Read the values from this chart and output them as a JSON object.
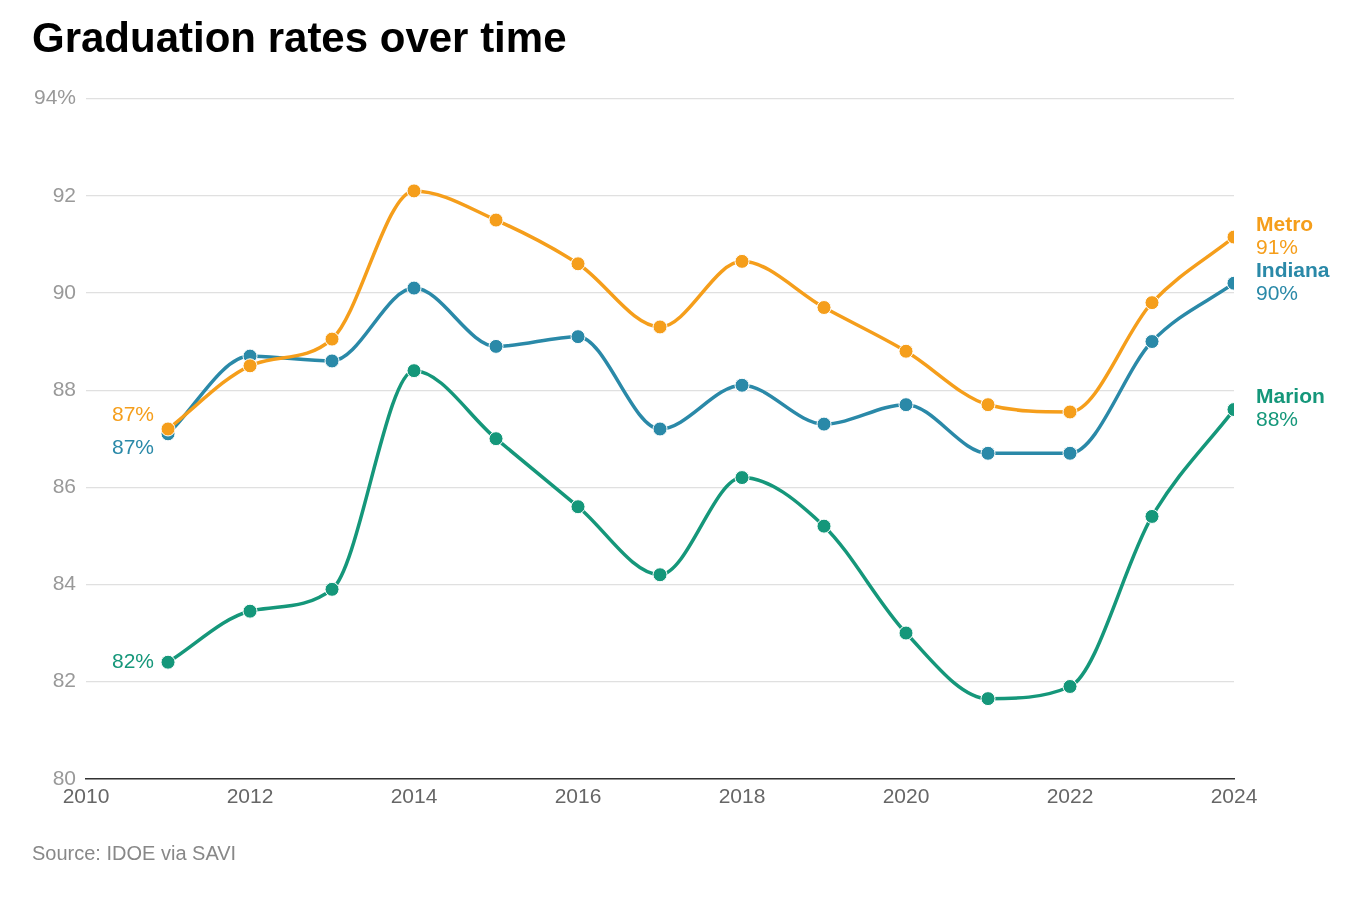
{
  "chart_data": {
    "type": "line",
    "title": "Graduation rates over time",
    "annotations": [
      "Source: IDOE via SAVI"
    ],
    "x": [
      2011,
      2012,
      2013,
      2014,
      2015,
      2016,
      2017,
      2018,
      2019,
      2020,
      2021,
      2022,
      2023,
      2024
    ],
    "xlim": [
      2010,
      2024
    ],
    "xticks": [
      2010,
      2012,
      2014,
      2016,
      2018,
      2020,
      2022,
      2024
    ],
    "ylim": [
      80,
      94
    ],
    "yticks": [
      80,
      82,
      84,
      86,
      88,
      90,
      92,
      {
        "value": 94,
        "label": "94%"
      }
    ],
    "grid": "y",
    "legend": false,
    "marker": "circle",
    "line_style": "solid",
    "series": [
      {
        "name": "Metro",
        "color": "#f59e1b",
        "values": [
          87.2,
          88.5,
          89.05,
          92.1,
          91.5,
          90.6,
          89.3,
          90.65,
          89.7,
          88.8,
          87.7,
          87.55,
          89.8,
          91.15
        ],
        "value_labels": [
          "87%",
          null,
          null,
          null,
          null,
          null,
          null,
          null,
          null,
          null,
          null,
          null,
          null,
          "91%"
        ]
      },
      {
        "name": "Indiana",
        "color": "#2a89a8",
        "values": [
          87.1,
          88.7,
          88.6,
          90.1,
          88.9,
          89.1,
          87.2,
          88.1,
          87.3,
          87.7,
          86.7,
          86.7,
          89.0,
          90.2
        ],
        "value_labels": [
          "87%",
          null,
          null,
          null,
          null,
          null,
          null,
          null,
          null,
          null,
          null,
          null,
          null,
          "90%"
        ]
      },
      {
        "name": "Marion",
        "color": "#15977a",
        "values": [
          82.4,
          83.45,
          83.9,
          88.4,
          87.0,
          85.6,
          84.2,
          86.2,
          85.2,
          83.0,
          81.65,
          81.9,
          85.4,
          87.6
        ],
        "value_labels": [
          "82%",
          null,
          null,
          null,
          null,
          null,
          null,
          null,
          null,
          null,
          null,
          null,
          null,
          "88%"
        ]
      }
    ]
  }
}
